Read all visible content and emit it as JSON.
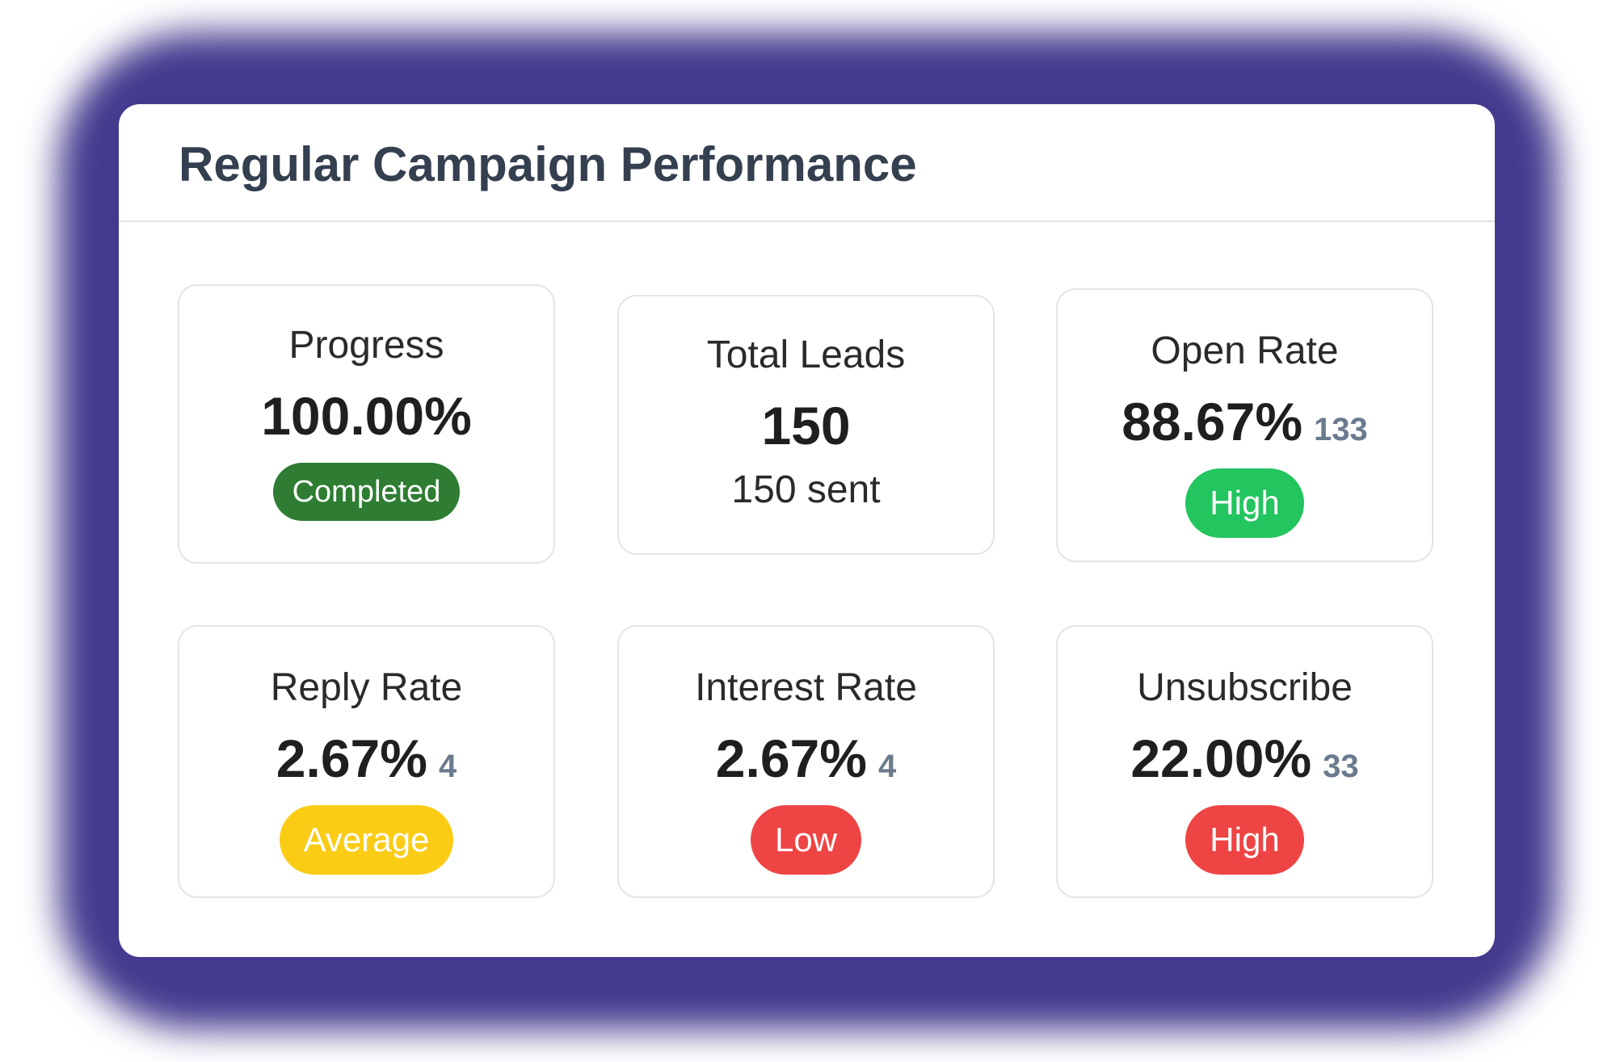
{
  "panel": {
    "title": "Regular Campaign Performance"
  },
  "cards": {
    "progress": {
      "label": "Progress",
      "value": "100.00%",
      "badge": "Completed",
      "badge_color": "#2e7d32"
    },
    "total_leads": {
      "label": "Total Leads",
      "value": "150",
      "sub": "150 sent"
    },
    "open_rate": {
      "label": "Open Rate",
      "value": "88.67%",
      "count": "133",
      "badge": "High",
      "badge_color": "#22c55e"
    },
    "reply_rate": {
      "label": "Reply Rate",
      "value": "2.67%",
      "count": "4",
      "badge": "Average",
      "badge_color": "#facc15"
    },
    "interest_rate": {
      "label": "Interest Rate",
      "value": "2.67%",
      "count": "4",
      "badge": "Low",
      "badge_color": "#ef4444"
    },
    "unsubscribe": {
      "label": "Unsubscribe",
      "value": "22.00%",
      "count": "33",
      "badge": "High",
      "badge_color": "#ef4444"
    }
  }
}
